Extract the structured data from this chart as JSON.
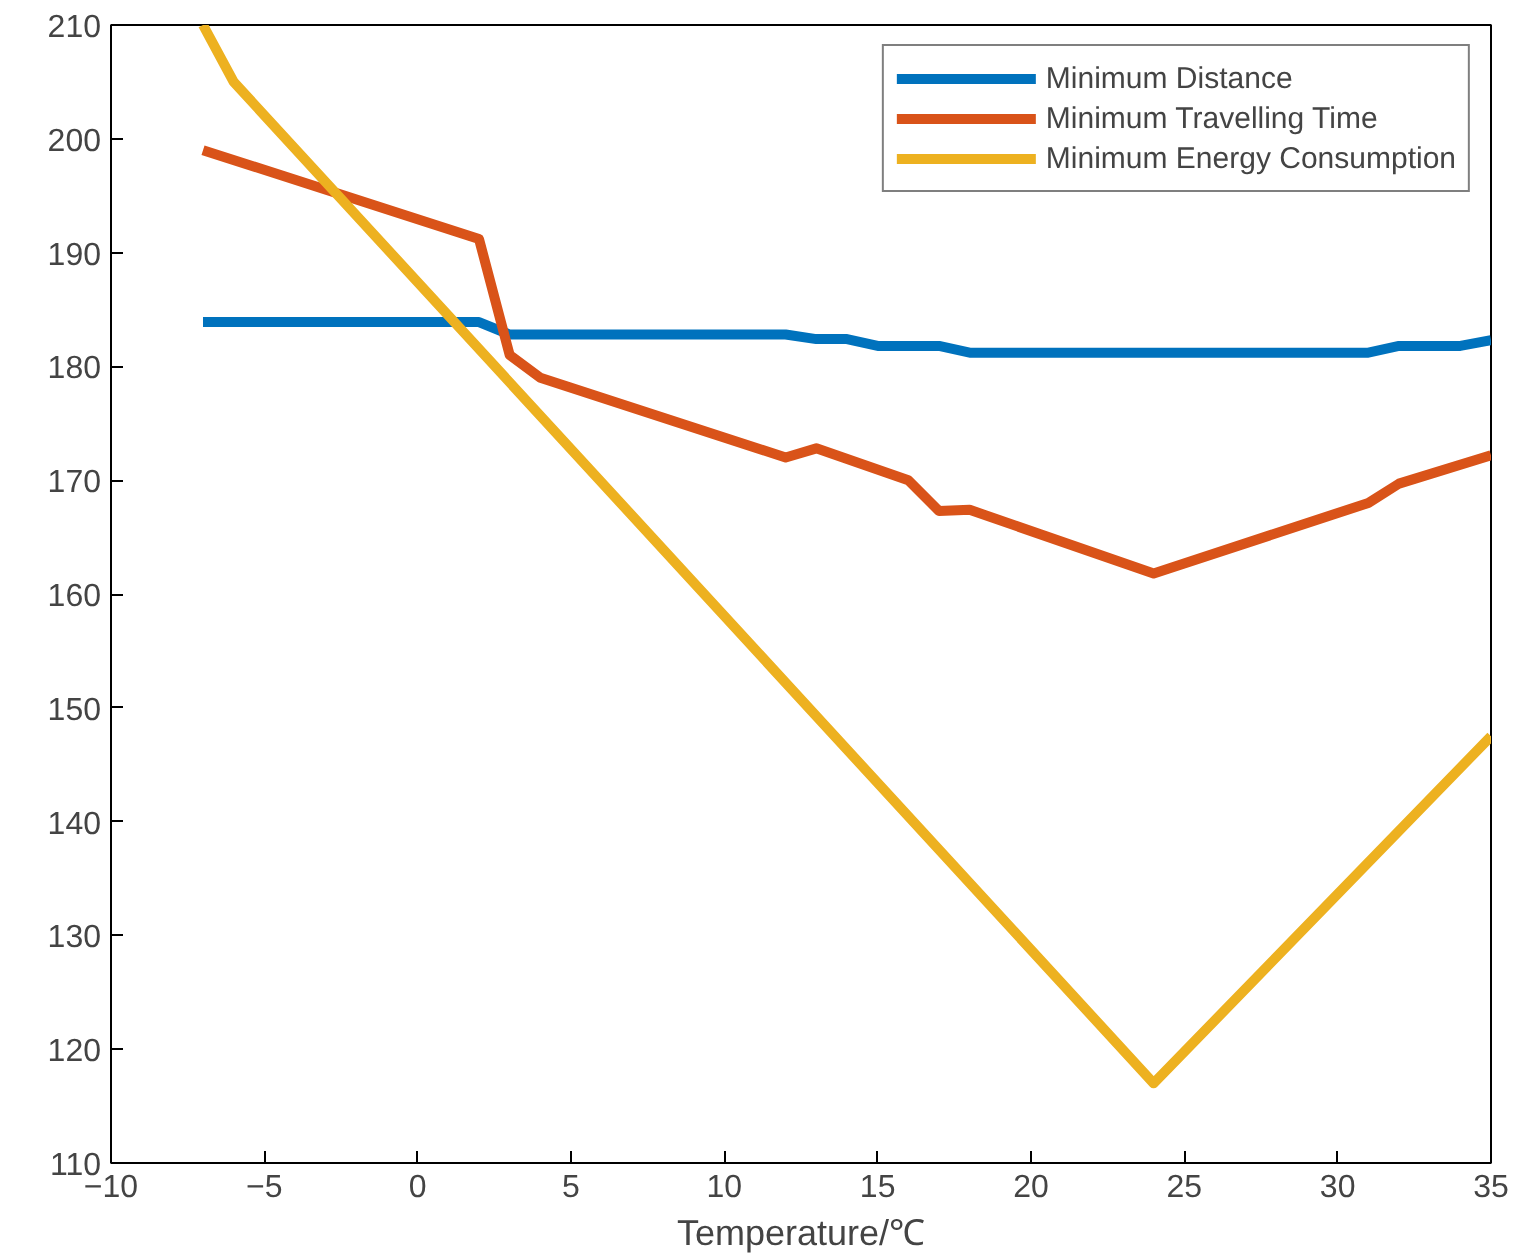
{
  "chart_data": {
    "type": "line",
    "xlabel": "Temperature/℃",
    "xlim": [
      -10,
      35
    ],
    "ylim": [
      110,
      210
    ],
    "xticks": [
      -10,
      -5,
      0,
      5,
      10,
      15,
      20,
      25,
      30,
      35
    ],
    "yticks": [
      110,
      120,
      130,
      140,
      150,
      160,
      170,
      180,
      190,
      200,
      210
    ],
    "grid": false,
    "legend": "top right",
    "marker": "none",
    "line_style": "solid",
    "series": [
      {
        "name": "Minimum Distance",
        "color": "#0072bd",
        "x": [
          -7,
          2,
          3,
          12,
          13,
          14,
          15,
          17,
          18,
          31,
          32,
          34,
          35
        ],
        "values": [
          183.9,
          183.9,
          182.8,
          182.8,
          182.4,
          182.4,
          181.8,
          181.8,
          181.2,
          181.2,
          181.8,
          181.8,
          182.3
        ]
      },
      {
        "name": "Minimum Travelling Time",
        "color": "#d95319",
        "x": [
          -7,
          2,
          3,
          4,
          12,
          13,
          16,
          17,
          18,
          24,
          31,
          32,
          35
        ],
        "values": [
          199,
          191.2,
          181,
          179,
          172,
          172.8,
          170,
          167.3,
          167.4,
          161.8,
          168,
          169.7,
          172.2
        ]
      },
      {
        "name": "Minimum Energy Consumption",
        "color": "#edb120",
        "x": [
          -7,
          -6,
          24,
          35
        ],
        "values": [
          210,
          205,
          117,
          147.5
        ]
      }
    ]
  }
}
